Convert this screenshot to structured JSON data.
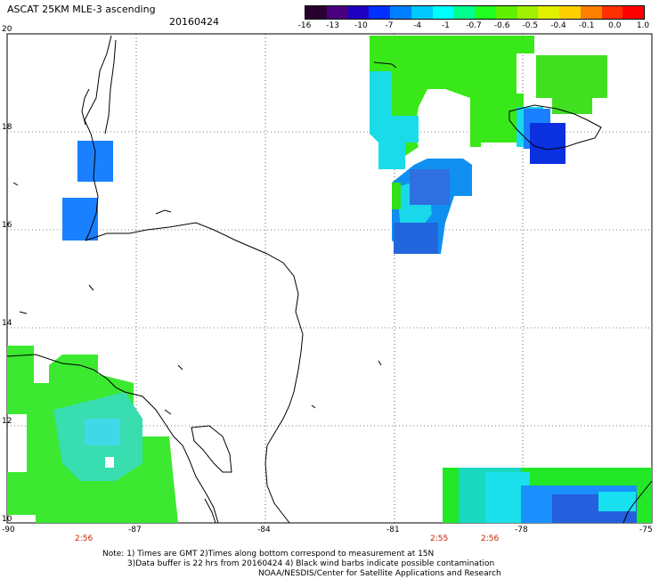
{
  "header": {
    "title": "ASCAT 25KM MLE-3 ascending",
    "date": "20160424"
  },
  "colorbar": {
    "colors": [
      "#2a0030",
      "#4a0080",
      "#2000c0",
      "#0030ff",
      "#0080ff",
      "#00c8ff",
      "#00ffff",
      "#00ff90",
      "#20ff20",
      "#60f000",
      "#a0f000",
      "#e0f000",
      "#ffd000",
      "#ff8000",
      "#ff3000",
      "#ff0000"
    ],
    "labels": [
      "-16",
      "-13",
      "-10",
      "-7",
      "-4",
      "-1",
      "-0.7",
      "-0.6",
      "-0.5",
      "-0.4",
      "-0.1",
      "0.0",
      "1.0"
    ]
  },
  "axes": {
    "x_ticks": [
      "-90",
      "-87",
      "-84",
      "-81",
      "-78",
      "-75"
    ],
    "y_ticks": [
      "20",
      "18",
      "16",
      "14",
      "12",
      "10"
    ]
  },
  "time_labels": [
    "2:56",
    "2:55",
    "2:56"
  ],
  "notes": {
    "line1": "Note: 1) Times are GMT 2)Times along bottom correspond to measurement at 15N",
    "line2": "3)Data buffer is 22 hrs from 20160424 4) Black wind barbs indicate possible contamination",
    "line3": "NOAA/NESDIS/Center for Satellite Applications and Research"
  }
}
